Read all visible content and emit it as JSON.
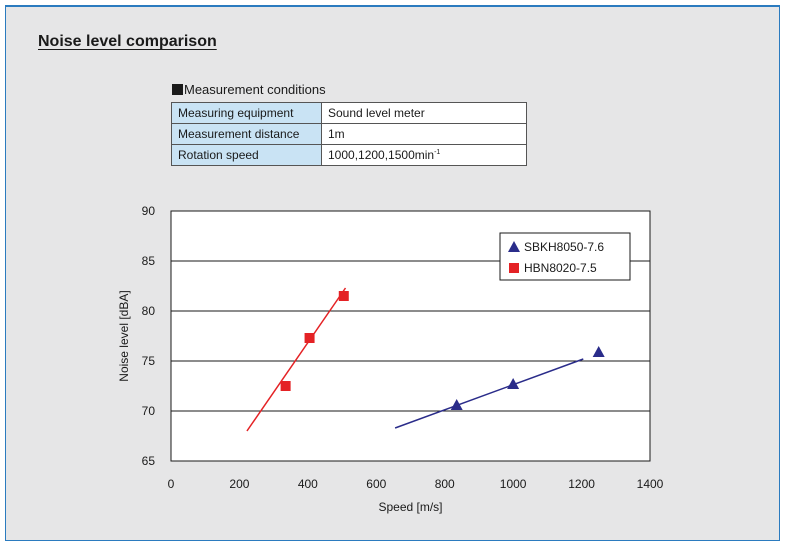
{
  "page": {
    "title": "Noise level comparison"
  },
  "conditions": {
    "caption": "Measurement conditions",
    "rows": [
      {
        "label": "Measuring equipment",
        "value": "Sound level meter"
      },
      {
        "label": "Measurement distance",
        "value": "1m"
      },
      {
        "label": "Rotation speed",
        "value": "1000,1200,1500min",
        "sup": "-1"
      }
    ]
  },
  "colors": {
    "frame_border": "#2b7bbf",
    "background": "#e6e6e7",
    "table_key_bg": "#c9e3f4"
  },
  "chart_data": {
    "type": "scatter",
    "title": "",
    "xlabel": "Speed [m/s]",
    "ylabel": "Noise level [dBA]",
    "xlim": [
      0,
      1400
    ],
    "ylim": [
      65,
      90
    ],
    "xticks": [
      0,
      200,
      400,
      600,
      800,
      1000,
      1200,
      1400
    ],
    "yticks": [
      65,
      70,
      75,
      80,
      85,
      90
    ],
    "grid": "horizontal",
    "legend_position": "top-right",
    "series": [
      {
        "name": "SBKH8050-7.6",
        "marker": "triangle",
        "color": "#2a2c8a",
        "points": [
          [
            835,
            70.6
          ],
          [
            1000,
            72.7
          ],
          [
            1250,
            75.9
          ]
        ],
        "trendline": [
          [
            655,
            68.3
          ],
          [
            1205,
            75.2
          ]
        ]
      },
      {
        "name": "HBN8020-7.5",
        "marker": "square",
        "color": "#e42225",
        "points": [
          [
            335,
            72.5
          ],
          [
            405,
            77.3
          ],
          [
            505,
            81.5
          ]
        ],
        "trendline": [
          [
            222,
            68.0
          ],
          [
            510,
            82.3
          ]
        ]
      }
    ]
  }
}
